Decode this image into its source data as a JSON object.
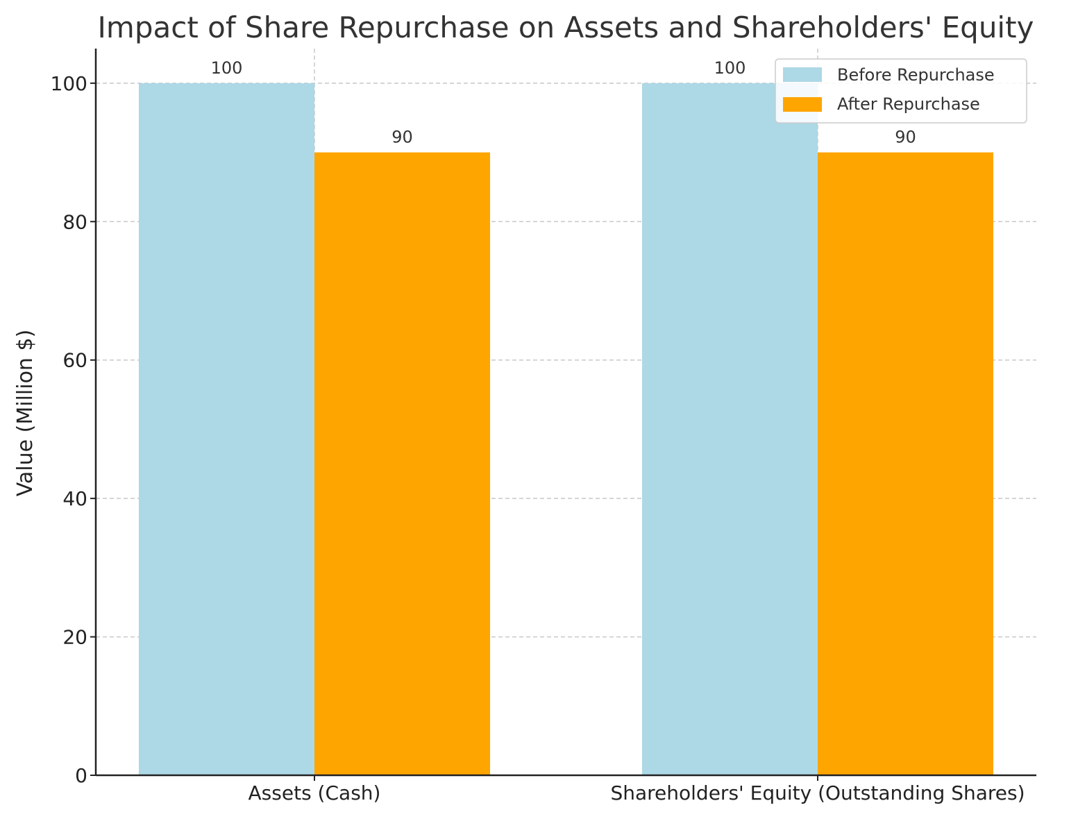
{
  "chart_data": {
    "type": "bar",
    "title": "Impact of Share Repurchase on Assets and Shareholders' Equity",
    "xlabel": "",
    "ylabel": "Value (Million $)",
    "categories": [
      "Assets (Cash)",
      "Shareholders' Equity (Outstanding Shares)"
    ],
    "series": [
      {
        "name": "Before Repurchase",
        "values": [
          100,
          100
        ],
        "color": "#add8e6"
      },
      {
        "name": "After Repurchase",
        "values": [
          90,
          90
        ],
        "color": "#ffa500"
      }
    ],
    "ylim": [
      0,
      105
    ],
    "yticks": [
      0,
      20,
      40,
      60,
      80,
      100
    ],
    "data_labels": [
      "100",
      "90",
      "100",
      "90"
    ],
    "grid": true,
    "legend_position": "top-right"
  }
}
